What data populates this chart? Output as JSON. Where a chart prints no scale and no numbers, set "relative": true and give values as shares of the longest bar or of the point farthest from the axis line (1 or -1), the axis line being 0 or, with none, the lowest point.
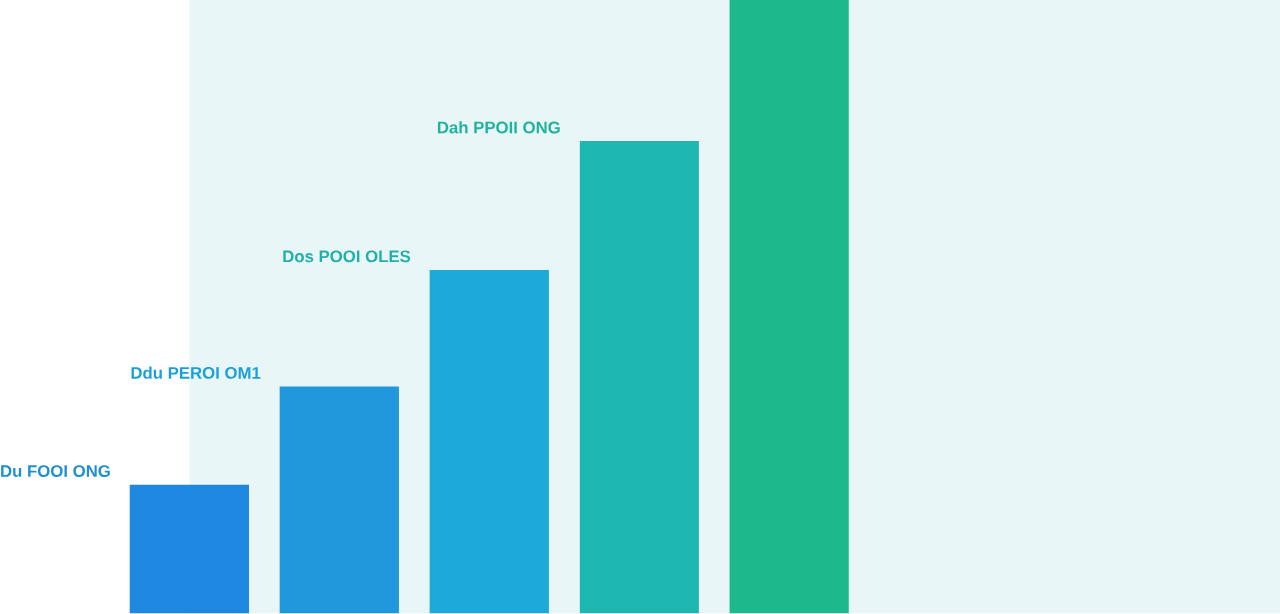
{
  "chart_data": {
    "type": "bar",
    "relative": true,
    "categories": [
      null,
      null,
      null,
      null,
      null
    ],
    "values": [
      0.21,
      0.37,
      0.56,
      0.77,
      1
    ],
    "colors": [
      "#1e88e0",
      "#2298dc",
      "#1eaad8",
      "#1fb8b0",
      "#1db98c"
    ],
    "annotations": [
      "Du FOOI ONG",
      "Ddu PEROI OM1",
      "Dos POOI OLES",
      "Dah PPOII ONG"
    ]
  }
}
